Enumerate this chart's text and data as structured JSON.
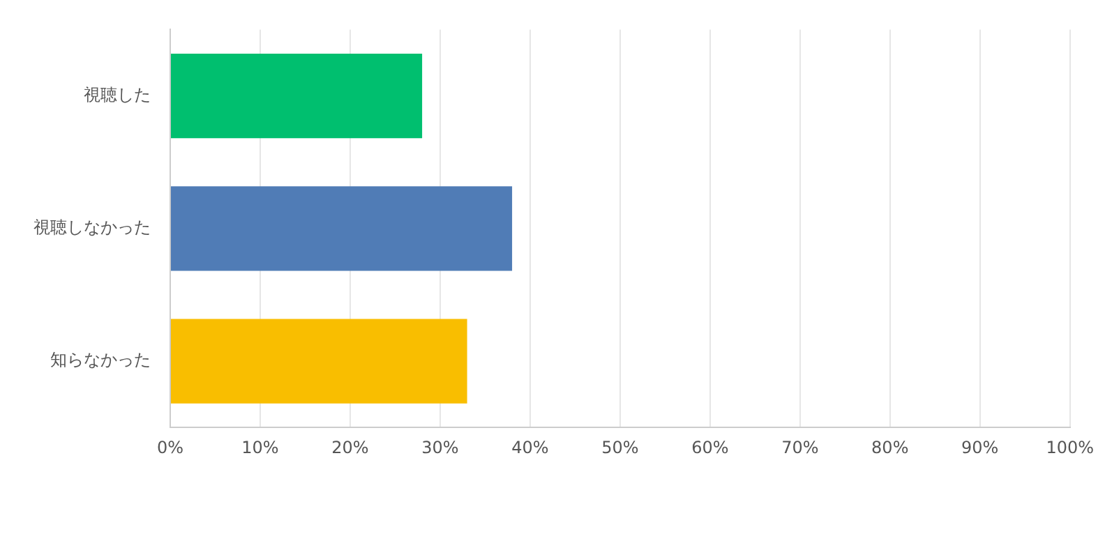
{
  "chart_data": {
    "type": "bar",
    "orientation": "horizontal",
    "categories": [
      "視聴した",
      "視聴しなかった",
      "知らなかった"
    ],
    "values": [
      28,
      38,
      33
    ],
    "colors": [
      "#00bf6f",
      "#507cb6",
      "#f9be00"
    ],
    "xlim": [
      0,
      100
    ],
    "xticks": [
      {
        "value": 0,
        "label": "0%"
      },
      {
        "value": 10,
        "label": "10%"
      },
      {
        "value": 20,
        "label": "20%"
      },
      {
        "value": 30,
        "label": "30%"
      },
      {
        "value": 40,
        "label": "40%"
      },
      {
        "value": 50,
        "label": "50%"
      },
      {
        "value": 60,
        "label": "60%"
      },
      {
        "value": 70,
        "label": "70%"
      },
      {
        "value": 80,
        "label": "80%"
      },
      {
        "value": 90,
        "label": "90%"
      },
      {
        "value": 100,
        "label": "100%"
      }
    ],
    "grid": "x",
    "legend": false
  }
}
